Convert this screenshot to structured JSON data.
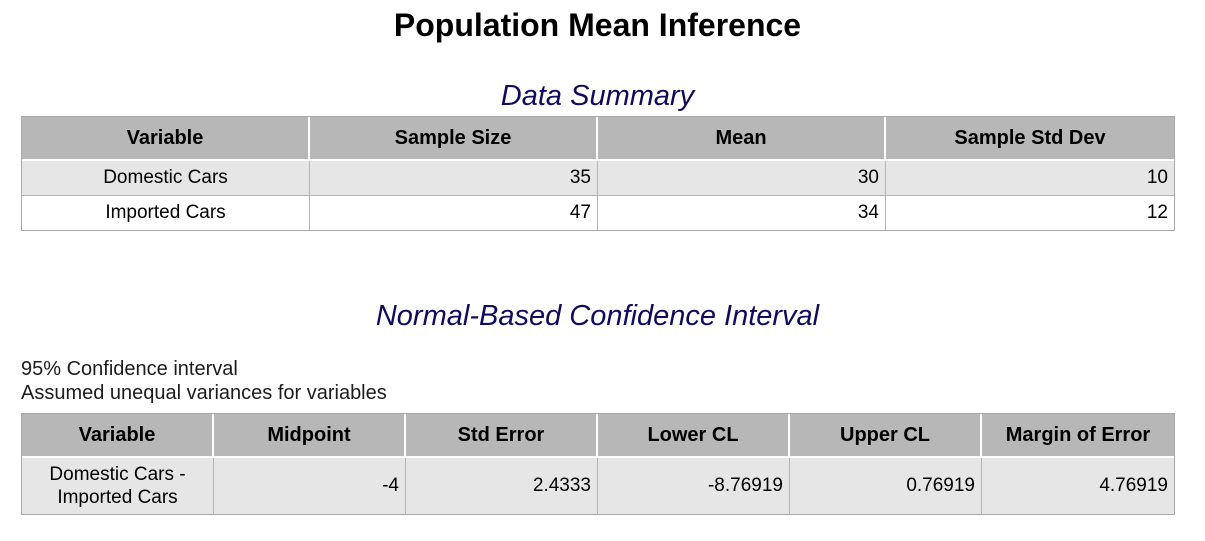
{
  "title": "Population Mean Inference",
  "summary": {
    "title": "Data Summary",
    "headers": [
      "Variable",
      "Sample Size",
      "Mean",
      "Sample Std Dev"
    ],
    "rows": [
      {
        "variable": "Domestic Cars",
        "sample_size": "35",
        "mean": "30",
        "sample_std_dev": "10"
      },
      {
        "variable": "Imported Cars",
        "sample_size": "47",
        "mean": "34",
        "sample_std_dev": "12"
      }
    ]
  },
  "ci": {
    "title": "Normal-Based Confidence Interval",
    "note_level": "95% Confidence interval",
    "note_variance": "Assumed unequal variances for variables",
    "headers": [
      "Variable",
      "Midpoint",
      "Std Error",
      "Lower CL",
      "Upper CL",
      "Margin of Error"
    ],
    "rows": [
      {
        "variable_line1": "Domestic Cars -",
        "variable_line2": "Imported Cars",
        "midpoint": "-4",
        "std_error": "2.4333",
        "lower_cl": "-8.76919",
        "upper_cl": "0.76919",
        "margin_of_error": "4.76919"
      }
    ]
  },
  "colors": {
    "section_title": "#110a5f",
    "header_bg": "#b7b7b7",
    "shaded_row_bg": "#e6e6e6"
  }
}
